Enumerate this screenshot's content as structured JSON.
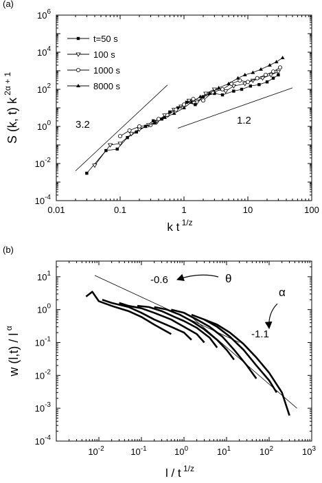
{
  "chart_data": [
    {
      "panel_label": "(a)",
      "type": "scatter",
      "scale": "log-log",
      "xlabel": "k t",
      "xlabel_sup": "1/z",
      "ylabel": "S (k, t) k",
      "ylabel_sup": "2α + 1",
      "xlim": [
        0.01,
        100
      ],
      "ylim": [
        0.0001,
        1000000
      ],
      "xticks": [
        "0.01",
        "0.1",
        "1",
        "10",
        "100"
      ],
      "yticks_base": "10",
      "yticks_exp": [
        "-4",
        "-2",
        "0",
        "2",
        "4",
        "6"
      ],
      "grid": false,
      "legend_position": "top-left",
      "series": [
        {
          "name": "t=50 s",
          "marker": "filled-square",
          "x": [
            0.03,
            0.06,
            0.09,
            0.13,
            0.18,
            0.25,
            0.33,
            0.45,
            0.6,
            0.8,
            1.1,
            1.5,
            2,
            3,
            4,
            6,
            8,
            11,
            15,
            20,
            25,
            30
          ],
          "y": [
            0.003,
            0.05,
            0.06,
            0.25,
            0.5,
            1.0,
            2.0,
            2.5,
            6.0,
            10,
            20,
            15,
            40,
            60,
            50,
            80,
            100,
            150,
            180,
            250,
            400,
            600
          ]
        },
        {
          "name": "100 s",
          "marker": "open-triangle-down",
          "x": [
            0.04,
            0.07,
            0.1,
            0.15,
            0.2,
            0.28,
            0.38,
            0.5,
            0.7,
            0.9,
            1.2,
            1.6,
            2.2,
            3,
            4.5,
            6,
            9,
            12,
            17,
            23,
            30
          ],
          "y": [
            0.008,
            0.1,
            0.12,
            0.4,
            0.7,
            1.2,
            1.8,
            4,
            8,
            12,
            25,
            20,
            60,
            100,
            80,
            150,
            200,
            300,
            400,
            600,
            900
          ]
        },
        {
          "name": "1000 s",
          "marker": "open-circle",
          "x": [
            0.1,
            0.14,
            0.2,
            0.3,
            0.4,
            0.55,
            0.75,
            1.0,
            1.4,
            2,
            2.8,
            4,
            5.5,
            7.5,
            10,
            14,
            19,
            25,
            32
          ],
          "y": [
            0.3,
            0.6,
            1.0,
            1.2,
            2.5,
            4,
            8,
            15,
            30,
            25,
            70,
            100,
            200,
            300,
            250,
            400,
            600,
            900,
            1500
          ]
        },
        {
          "name": "8000 s",
          "marker": "filled-triangle-up",
          "x": [
            0.25,
            0.35,
            0.5,
            0.7,
            1.0,
            1.3,
            1.8,
            2.5,
            3.5,
            5,
            7,
            9,
            12,
            16,
            22,
            28,
            35
          ],
          "y": [
            1.0,
            1.5,
            3,
            5,
            10,
            20,
            40,
            60,
            120,
            200,
            400,
            600,
            800,
            1200,
            2000,
            3000,
            5000
          ]
        }
      ],
      "reference_lines": [
        {
          "label": "3.2",
          "slope": 3.2,
          "x": [
            0.02,
            0.55
          ],
          "y": [
            0.004,
            170
          ]
        },
        {
          "label": "1.2",
          "slope": 1.2,
          "x": [
            0.8,
            50
          ],
          "y": [
            0.8,
            120
          ]
        }
      ]
    },
    {
      "panel_label": "(b)",
      "type": "line",
      "scale": "log-log",
      "xlabel": "l / t",
      "xlabel_sup": "1/z",
      "ylabel": "w (l,t) / l",
      "ylabel_sup": "α",
      "xlim": [
        0.001,
        1000
      ],
      "ylim": [
        0.0001,
        30
      ],
      "xticks_base": "10",
      "xticks_exp": [
        "-2",
        "-1",
        "0",
        "1",
        "2",
        "3"
      ],
      "yticks_base": "10",
      "yticks_exp": [
        "-4",
        "-3",
        "-2",
        "-1",
        "0",
        "1"
      ],
      "grid": false,
      "series": [
        {
          "x": [
            0.005,
            0.007,
            0.01,
            0.02,
            0.05,
            0.1,
            0.2,
            0.5
          ],
          "y": [
            2.5,
            3.5,
            1.8,
            1.3,
            0.9,
            0.6,
            0.35,
            0.18
          ]
        },
        {
          "x": [
            0.012,
            0.02,
            0.05,
            0.1,
            0.2,
            0.5,
            1,
            1.5
          ],
          "y": [
            2.0,
            1.6,
            1.2,
            0.8,
            0.5,
            0.3,
            0.2,
            0.12
          ]
        },
        {
          "x": [
            0.03,
            0.05,
            0.1,
            0.2,
            0.5,
            1,
            2,
            3
          ],
          "y": [
            1.6,
            1.3,
            1.1,
            0.8,
            0.5,
            0.3,
            0.18,
            0.1
          ]
        },
        {
          "x": [
            0.08,
            0.15,
            0.3,
            0.6,
            1,
            2,
            4,
            6
          ],
          "y": [
            1.3,
            1.2,
            0.9,
            0.6,
            0.45,
            0.28,
            0.14,
            0.07
          ]
        },
        {
          "x": [
            0.2,
            0.4,
            0.8,
            1.5,
            3,
            6,
            10,
            15
          ],
          "y": [
            1.2,
            1.0,
            0.7,
            0.45,
            0.25,
            0.12,
            0.06,
            0.03
          ]
        },
        {
          "x": [
            0.5,
            1,
            2,
            4,
            8,
            15,
            30,
            50
          ],
          "y": [
            1.0,
            0.8,
            0.5,
            0.3,
            0.15,
            0.06,
            0.02,
            0.008
          ]
        },
        {
          "x": [
            1.5,
            3,
            6,
            12,
            25,
            50,
            100,
            150
          ],
          "y": [
            0.7,
            0.5,
            0.3,
            0.15,
            0.06,
            0.02,
            0.007,
            0.003
          ]
        },
        {
          "x": [
            3,
            6,
            12,
            25,
            50,
            100,
            200,
            300
          ],
          "y": [
            0.5,
            0.35,
            0.2,
            0.09,
            0.035,
            0.012,
            0.003,
            0.0006
          ]
        }
      ],
      "reference_lines": [
        {
          "label": "-0.6",
          "slope": -0.6,
          "x": [
            0.008,
            20
          ],
          "y": [
            11,
            0.1
          ]
        },
        {
          "label": "-1.1",
          "slope": -1.1,
          "x": [
            1.5,
            450
          ],
          "y": [
            0.6,
            0.001
          ]
        }
      ],
      "annotations": [
        {
          "text": "θ",
          "points_to": "-0.6"
        },
        {
          "text": "α",
          "points_to": "-1.1"
        }
      ]
    }
  ]
}
